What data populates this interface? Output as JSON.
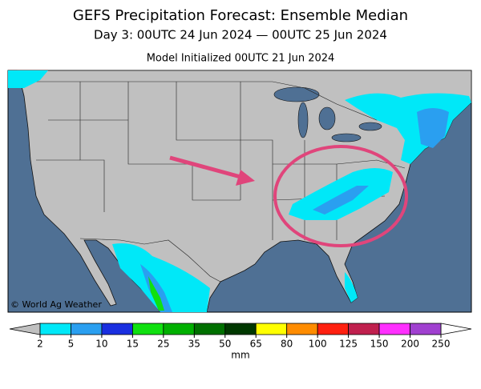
{
  "header": {
    "title": "GEFS Precipitation Forecast: Ensemble Median",
    "subtitle": "Day 3: 00UTC 24 Jun 2024 — 00UTC 25 Jun 2024",
    "init": "Model Initialized 00UTC 21 Jun 2024"
  },
  "map": {
    "credit": "© World Ag Weather"
  },
  "colorbar": {
    "ticks": [
      2,
      5,
      10,
      15,
      25,
      35,
      50,
      65,
      80,
      100,
      125,
      150,
      200,
      250
    ],
    "colors": [
      "#00e8f8",
      "#2a9ff0",
      "#1a2fe0",
      "#10e010",
      "#00b000",
      "#007000",
      "#003800",
      "#ffff00",
      "#ff8c00",
      "#ff2010",
      "#c0204e",
      "#ff30ff",
      "#a040d0"
    ],
    "under_color": "#c0c0c0",
    "over_color": "#ffffff",
    "unit": "mm"
  }
}
